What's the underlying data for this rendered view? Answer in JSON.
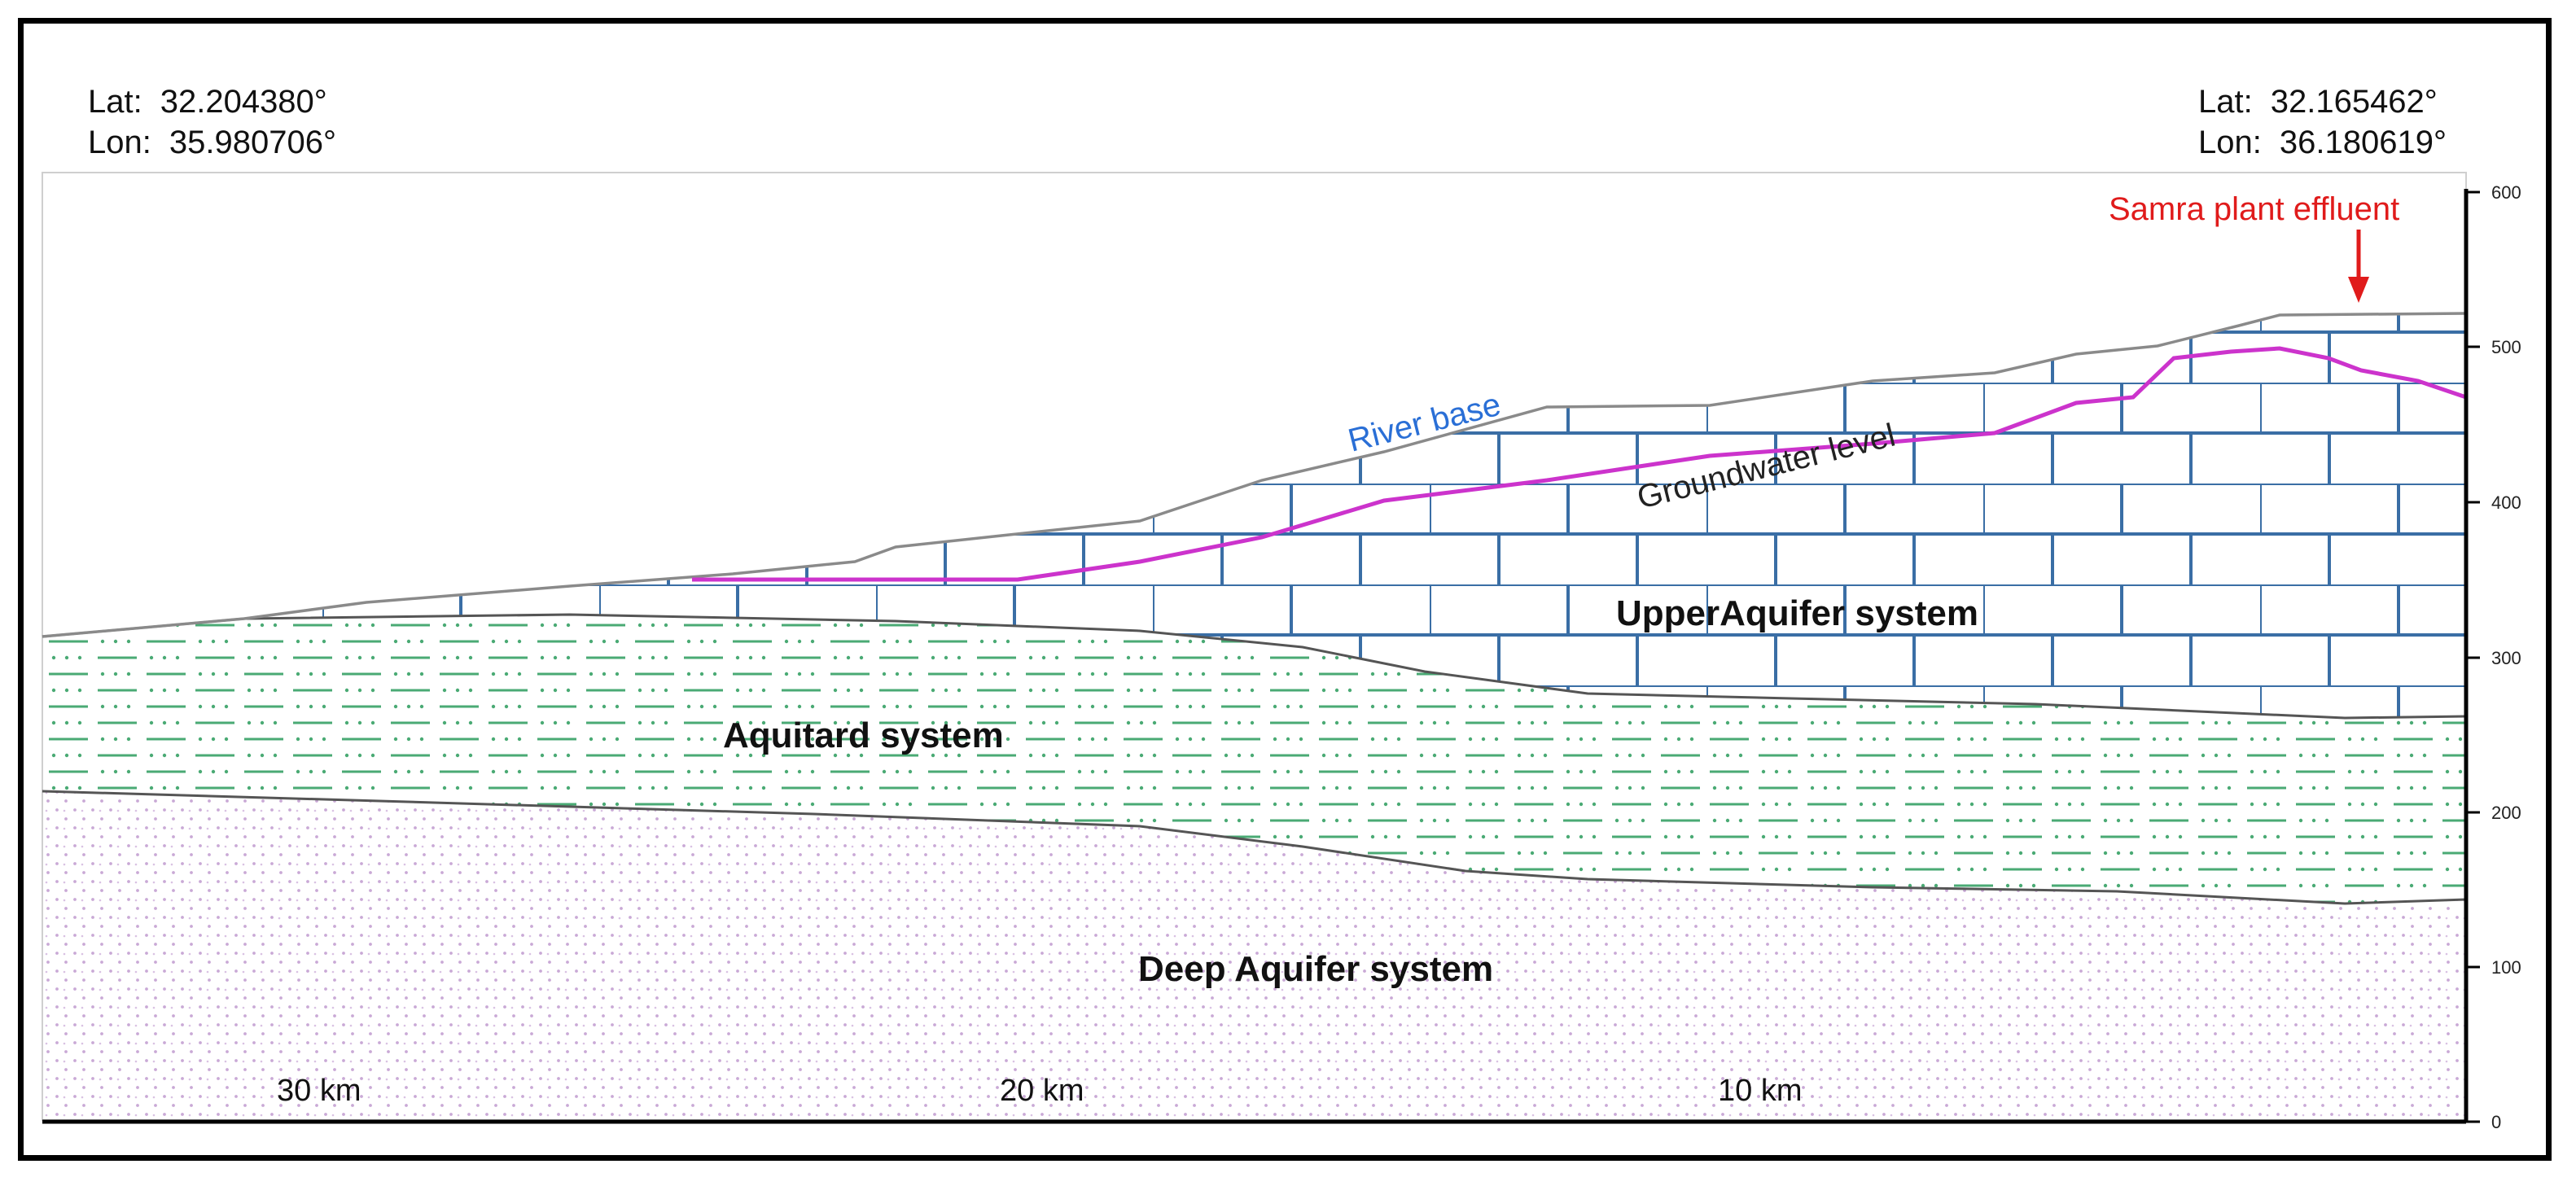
{
  "coords": {
    "left": {
      "lat_label": "Lat:",
      "lat": "32.204380°",
      "lon_label": "Lon:",
      "lon": "35.980706°"
    },
    "right": {
      "lat_label": "Lat:",
      "lat": "32.165462°",
      "lon_label": "Lon:",
      "lon": "36.180619°"
    }
  },
  "labels": {
    "upper": "UpperAquifer system",
    "aquitard": "Aquitard system",
    "deep": "Deep Aquifer system",
    "river_base": "River base",
    "groundwater": "Groundwater level",
    "samra": "Samra plant effluent"
  },
  "distance_ticks": [
    "30 km",
    "20 km",
    "10 km"
  ],
  "elevation_ticks": [
    "600",
    "500",
    "400",
    "300",
    "200",
    "100",
    "0"
  ],
  "colors": {
    "river_label": "#2a6fd6",
    "groundwater_line": "#cc33cc",
    "samra": "#e01b1b",
    "brick": "#3a6ea5",
    "aquitard": "#4aaa74",
    "deep_dots": "#c9a9d6"
  }
}
